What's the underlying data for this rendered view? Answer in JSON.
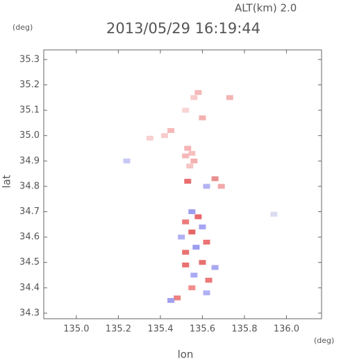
{
  "chart_data": {
    "type": "scatter",
    "title": "2013/05/29 16:19:44",
    "subtitle": "ALT(km) 2.0",
    "y_unit": "(deg)",
    "x_unit": "(deg)",
    "x_label": "lon",
    "y_label": "lat",
    "xlim": [
      134.845,
      136.167
    ],
    "ylim": [
      34.278,
      35.338
    ],
    "xticks": [
      {
        "value": 135,
        "label": "135.0"
      },
      135.2,
      135.4,
      135.6,
      135.8,
      {
        "value": 136,
        "label": "136.0"
      }
    ],
    "yticks": [
      34.3,
      34.4,
      34.5,
      34.6,
      34.7,
      34.8,
      34.9,
      {
        "value": 35,
        "label": "35.0"
      },
      35.1,
      35.2,
      35.3
    ],
    "x": [
      135.53,
      135.55,
      135.52,
      135.56,
      135.54,
      135.45,
      135.42,
      135.35,
      135.58,
      135.56,
      135.73,
      135.6,
      135.52,
      135.24,
      135.66,
      135.62,
      135.69,
      135.53,
      135.55,
      135.58,
      135.52,
      135.6,
      135.55,
      135.5,
      135.62,
      135.57,
      135.52,
      135.6,
      135.66,
      135.52,
      135.56,
      135.63,
      135.55,
      135.48,
      135.62,
      135.45,
      135.94
    ],
    "y": [
      34.95,
      34.93,
      34.92,
      34.9,
      34.88,
      35.02,
      35.0,
      34.99,
      35.17,
      35.15,
      35.15,
      35.07,
      35.1,
      34.9,
      34.83,
      34.8,
      34.8,
      34.82,
      34.7,
      34.68,
      34.66,
      34.64,
      34.62,
      34.6,
      34.58,
      34.56,
      34.54,
      34.5,
      34.48,
      34.49,
      34.45,
      34.43,
      34.4,
      34.36,
      34.38,
      34.35,
      34.69
    ],
    "colors": [
      "#f5b3b3",
      "#f7c0c0",
      "#f5b8b8",
      "#f4b0b0",
      "#f7c4c4",
      "#f5b8b8",
      "#f8cccc",
      "#f8d0d0",
      "#f6b8b8",
      "#f8cccc",
      "#f4b4b4",
      "#f4b0b0",
      "#f8d4d4",
      "#c8c8f5",
      "#e88f8f",
      "#b3b3f2",
      "#f2a8a8",
      "#e86f6f",
      "#9e9ef0",
      "#e86a6a",
      "#ec7a7a",
      "#a5a5f2",
      "#e56565",
      "#b0b0f4",
      "#ec7474",
      "#9c9cf0",
      "#e97070",
      "#e87070",
      "#a8a8f2",
      "#ea7272",
      "#aaaaf4",
      "#ec7878",
      "#f28c8c",
      "#ee8080",
      "#b0b0f4",
      "#a0a0ee",
      "#dcdcf0"
    ]
  }
}
